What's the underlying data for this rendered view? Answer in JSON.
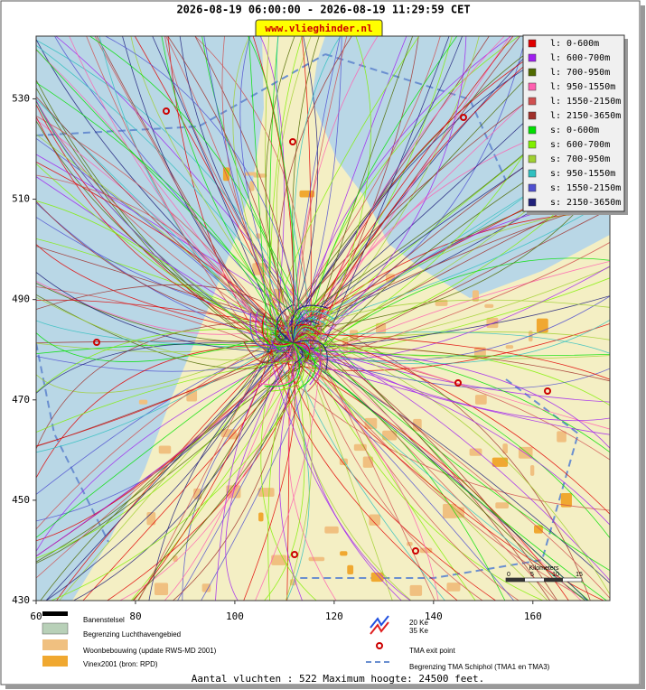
{
  "header": {
    "title": "2026-08-19 06:00:00 - 2026-08-19 11:29:59 CET",
    "site": "www.vlieghinder.nl"
  },
  "map": {
    "xlim": [
      60,
      175.5
    ],
    "ylim": [
      430,
      542.5
    ],
    "xticks": [
      60,
      80,
      100,
      120,
      140,
      160
    ],
    "yticks": [
      430,
      450,
      470,
      490,
      510,
      530
    ]
  },
  "legend": [
    {
      "label": "l: 0-600m",
      "color": "#e00000"
    },
    {
      "label": "l: 600-700m",
      "color": "#a020f0"
    },
    {
      "label": "l: 700-950m",
      "color": "#4f6a00"
    },
    {
      "label": "l: 950-1550m",
      "color": "#ff5fb0"
    },
    {
      "label": "l: 1550-2150m",
      "color": "#d05050"
    },
    {
      "label": "l: 2150-3650m",
      "color": "#a0302a"
    },
    {
      "label": "s: 0-600m",
      "color": "#00e000"
    },
    {
      "label": "s: 600-700m",
      "color": "#80f000"
    },
    {
      "label": "s: 700-950m",
      "color": "#a0d030"
    },
    {
      "label": "s: 950-1550m",
      "color": "#30c0c0"
    },
    {
      "label": "s: 1550-2150m",
      "color": "#5050d0"
    },
    {
      "label": "s: 2150-3650m",
      "color": "#20207a"
    }
  ],
  "map_legend": {
    "runways": "Banenstelsel",
    "airport_boundary": "Begrenzing Luchthavengebied",
    "housing": "Woonbebouwing (update RWS-MD 2001)",
    "vinex": "Vinex2001 (bron: RPD)",
    "ke20": "20 Ke",
    "ke35": "35 Ke",
    "tma_exit": "TMA exit point",
    "tma_boundary": "Begrenzing TMA Schiphol  (TMA1 en TMA3)"
  },
  "scale": {
    "title": "Kilometers",
    "labels": [
      "0",
      "5",
      "10",
      "15"
    ]
  },
  "footer": "Aantal vluchten : 522 Maximum hoogte: 24500 feet."
}
